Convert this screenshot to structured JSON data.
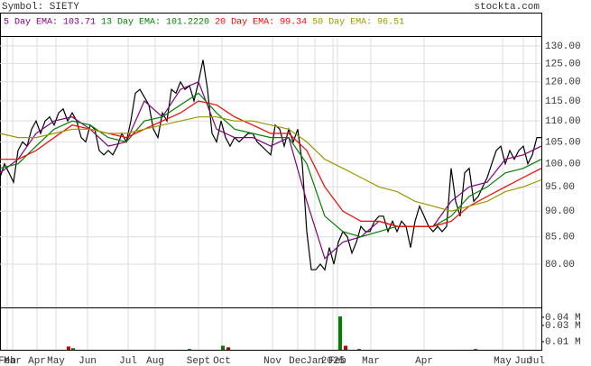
{
  "chart_data": [
    {
      "type": "line",
      "title": "Symbol: SIETY",
      "source": "stockta.com",
      "log_scale": true,
      "grid": true,
      "ylim": [
        72.8,
        132.6
      ],
      "xlim": [
        0,
        600
      ],
      "yticks": [
        {
          "value": 130,
          "label": "130.00"
        },
        {
          "value": 125,
          "label": "125.00"
        },
        {
          "value": 120,
          "label": "120.00"
        },
        {
          "value": 115,
          "label": "115.00"
        },
        {
          "value": 110,
          "label": "110.00"
        },
        {
          "value": 105,
          "label": "105.00"
        },
        {
          "value": 100,
          "label": "100.00"
        },
        {
          "value": 95,
          "label": "95.00"
        },
        {
          "value": 90,
          "label": "90.00"
        },
        {
          "value": 85,
          "label": "85.00"
        },
        {
          "value": 80,
          "label": "80.00"
        }
      ],
      "series": [
        {
          "color": "#000000",
          "x": [
            0,
            5,
            10,
            15,
            20,
            25,
            30,
            35,
            40,
            45,
            50,
            55,
            60,
            65,
            70,
            75,
            80,
            85,
            90,
            95,
            100,
            105,
            110,
            115,
            120,
            125,
            130,
            135,
            140,
            145,
            150,
            155,
            160,
            165,
            170,
            175,
            180,
            185,
            190,
            195,
            200,
            205,
            210,
            215,
            220,
            225,
            230,
            235,
            240,
            245,
            250,
            255,
            260,
            265,
            270,
            275,
            280,
            285,
            290,
            295,
            300,
            305,
            310,
            315,
            320,
            325,
            330,
            335,
            340,
            345,
            350,
            355,
            360,
            365,
            370,
            375,
            380,
            385,
            390,
            395,
            400,
            405,
            410,
            415,
            420,
            425,
            430,
            435,
            440,
            445,
            450,
            455,
            460,
            465,
            470,
            475,
            480,
            485,
            490,
            495,
            500,
            505,
            510,
            515,
            520,
            525,
            530,
            535,
            540,
            545,
            550,
            555,
            560,
            565,
            570,
            575,
            580,
            585,
            590,
            595,
            600
          ],
          "values": [
            97,
            100,
            98,
            96,
            103,
            105,
            104,
            108,
            110,
            107,
            110,
            111,
            109,
            112,
            113,
            110,
            112,
            110,
            106,
            105,
            109,
            108,
            103,
            102,
            103,
            102,
            104,
            107,
            105,
            110,
            117,
            118,
            116,
            114,
            108,
            106,
            112,
            110,
            118,
            117,
            120,
            118,
            119,
            115,
            120,
            126,
            118,
            107,
            105,
            110,
            106,
            104,
            106,
            105,
            106,
            107,
            107,
            105,
            104,
            103,
            102,
            109,
            108,
            104,
            108,
            105,
            108,
            100,
            86,
            79,
            79,
            80,
            79,
            83,
            80,
            84,
            86,
            85,
            82,
            84,
            87,
            86,
            86,
            88,
            89,
            89,
            86,
            88,
            86,
            88,
            87,
            83,
            88,
            91,
            89,
            87,
            86,
            87,
            86,
            87,
            99,
            92,
            89,
            98,
            99,
            92,
            93,
            95,
            97,
            100,
            103,
            104,
            100,
            103,
            101,
            103,
            104,
            100,
            102,
            106,
            106
          ]
        },
        {
          "name": "5 Day EMA: 103.71",
          "color": "#800080",
          "x": [
            0,
            20,
            40,
            60,
            80,
            100,
            120,
            140,
            160,
            180,
            200,
            220,
            240,
            260,
            280,
            300,
            320,
            340,
            360,
            380,
            400,
            420,
            440,
            460,
            480,
            500,
            520,
            540,
            560,
            580,
            600
          ],
          "values": [
            98,
            101,
            107,
            110,
            111,
            108,
            104,
            105,
            115,
            111,
            118,
            120,
            108,
            106,
            106,
            104,
            106,
            92,
            81,
            84,
            85,
            88,
            87,
            87,
            87,
            92,
            95,
            96,
            101,
            102,
            104
          ]
        },
        {
          "name": "13 Day EMA: 101.2220",
          "color": "#008000",
          "x": [
            0,
            20,
            40,
            60,
            80,
            100,
            120,
            140,
            160,
            180,
            200,
            220,
            240,
            260,
            280,
            300,
            320,
            340,
            360,
            380,
            400,
            420,
            440,
            460,
            480,
            500,
            520,
            540,
            560,
            580,
            600
          ],
          "values": [
            99,
            100,
            104,
            108,
            110,
            109,
            106,
            105,
            110,
            111,
            114,
            117,
            112,
            108,
            107,
            106,
            106,
            100,
            89,
            86,
            85,
            86,
            87,
            87,
            87,
            89,
            93,
            95,
            98,
            99,
            101
          ]
        },
        {
          "name": "20 Day EMA: 99.34",
          "color": "#ff0000",
          "x": [
            0,
            20,
            40,
            60,
            80,
            100,
            120,
            140,
            160,
            180,
            200,
            220,
            240,
            260,
            280,
            300,
            320,
            340,
            360,
            380,
            400,
            420,
            440,
            460,
            480,
            500,
            520,
            540,
            560,
            580,
            600
          ],
          "values": [
            101,
            101,
            103,
            106,
            109,
            108,
            107,
            106,
            108,
            110,
            112,
            115,
            114,
            111,
            109,
            107,
            107,
            103,
            95,
            90,
            88,
            88,
            87,
            87,
            87,
            88,
            91,
            93,
            95,
            97,
            99
          ]
        },
        {
          "name": "50 Day EMA: 96.51",
          "color": "#999900",
          "x": [
            0,
            20,
            40,
            60,
            80,
            100,
            120,
            140,
            160,
            180,
            200,
            220,
            240,
            260,
            280,
            300,
            320,
            340,
            360,
            380,
            400,
            420,
            440,
            460,
            480,
            500,
            520,
            540,
            560,
            580,
            600
          ],
          "values": [
            107,
            106,
            106,
            107,
            108,
            108,
            107,
            107,
            108,
            109,
            110,
            111,
            111,
            110,
            110,
            109,
            108,
            105,
            101,
            99,
            97,
            95,
            94,
            92,
            91,
            90,
            91,
            92,
            94,
            95,
            96.5
          ]
        }
      ]
    },
    {
      "type": "bar",
      "xlim": [
        0,
        600
      ],
      "ylim": [
        0,
        0.051
      ],
      "yticks": [
        {
          "value": 0.04,
          "label": "0.04 M"
        },
        {
          "value": 0.03,
          "label": "0.03 M"
        },
        {
          "value": 0.01,
          "label": "0.01 M"
        }
      ],
      "xticks": [
        {
          "value": 8,
          "label": "Feb"
        },
        {
          "value": 14,
          "label": "Mar"
        },
        {
          "value": 41,
          "label": "Apr"
        },
        {
          "value": 62,
          "label": "May"
        },
        {
          "value": 97,
          "label": "Jun"
        },
        {
          "value": 142,
          "label": "Jul"
        },
        {
          "value": 172,
          "label": "Aug"
        },
        {
          "value": 220,
          "label": "Sept"
        },
        {
          "value": 246,
          "label": "Oct"
        },
        {
          "value": 302,
          "label": "Nov"
        },
        {
          "value": 330,
          "label": "Dec"
        },
        {
          "value": 349,
          "label": "Jan"
        },
        {
          "value": 369,
          "label": "2025"
        },
        {
          "value": 374,
          "label": "Feb"
        },
        {
          "value": 411,
          "label": "Mar"
        },
        {
          "value": 470,
          "label": "Apr"
        },
        {
          "value": 557,
          "label": "May"
        },
        {
          "value": 580,
          "label": "Jun"
        },
        {
          "value": 594,
          "label": "Jul"
        }
      ],
      "x": [
        76,
        81,
        210,
        247,
        253,
        377,
        383,
        398,
        527
      ],
      "values": [
        0.004,
        0.002,
        0.001,
        0.005,
        0.003,
        0.041,
        0.005,
        0.001,
        0.001
      ],
      "colors": [
        "#cc0000",
        "#008000",
        "#008000",
        "#008000",
        "#cc0000",
        "#008000",
        "#cc0000",
        "#008000",
        "#008000"
      ]
    }
  ]
}
